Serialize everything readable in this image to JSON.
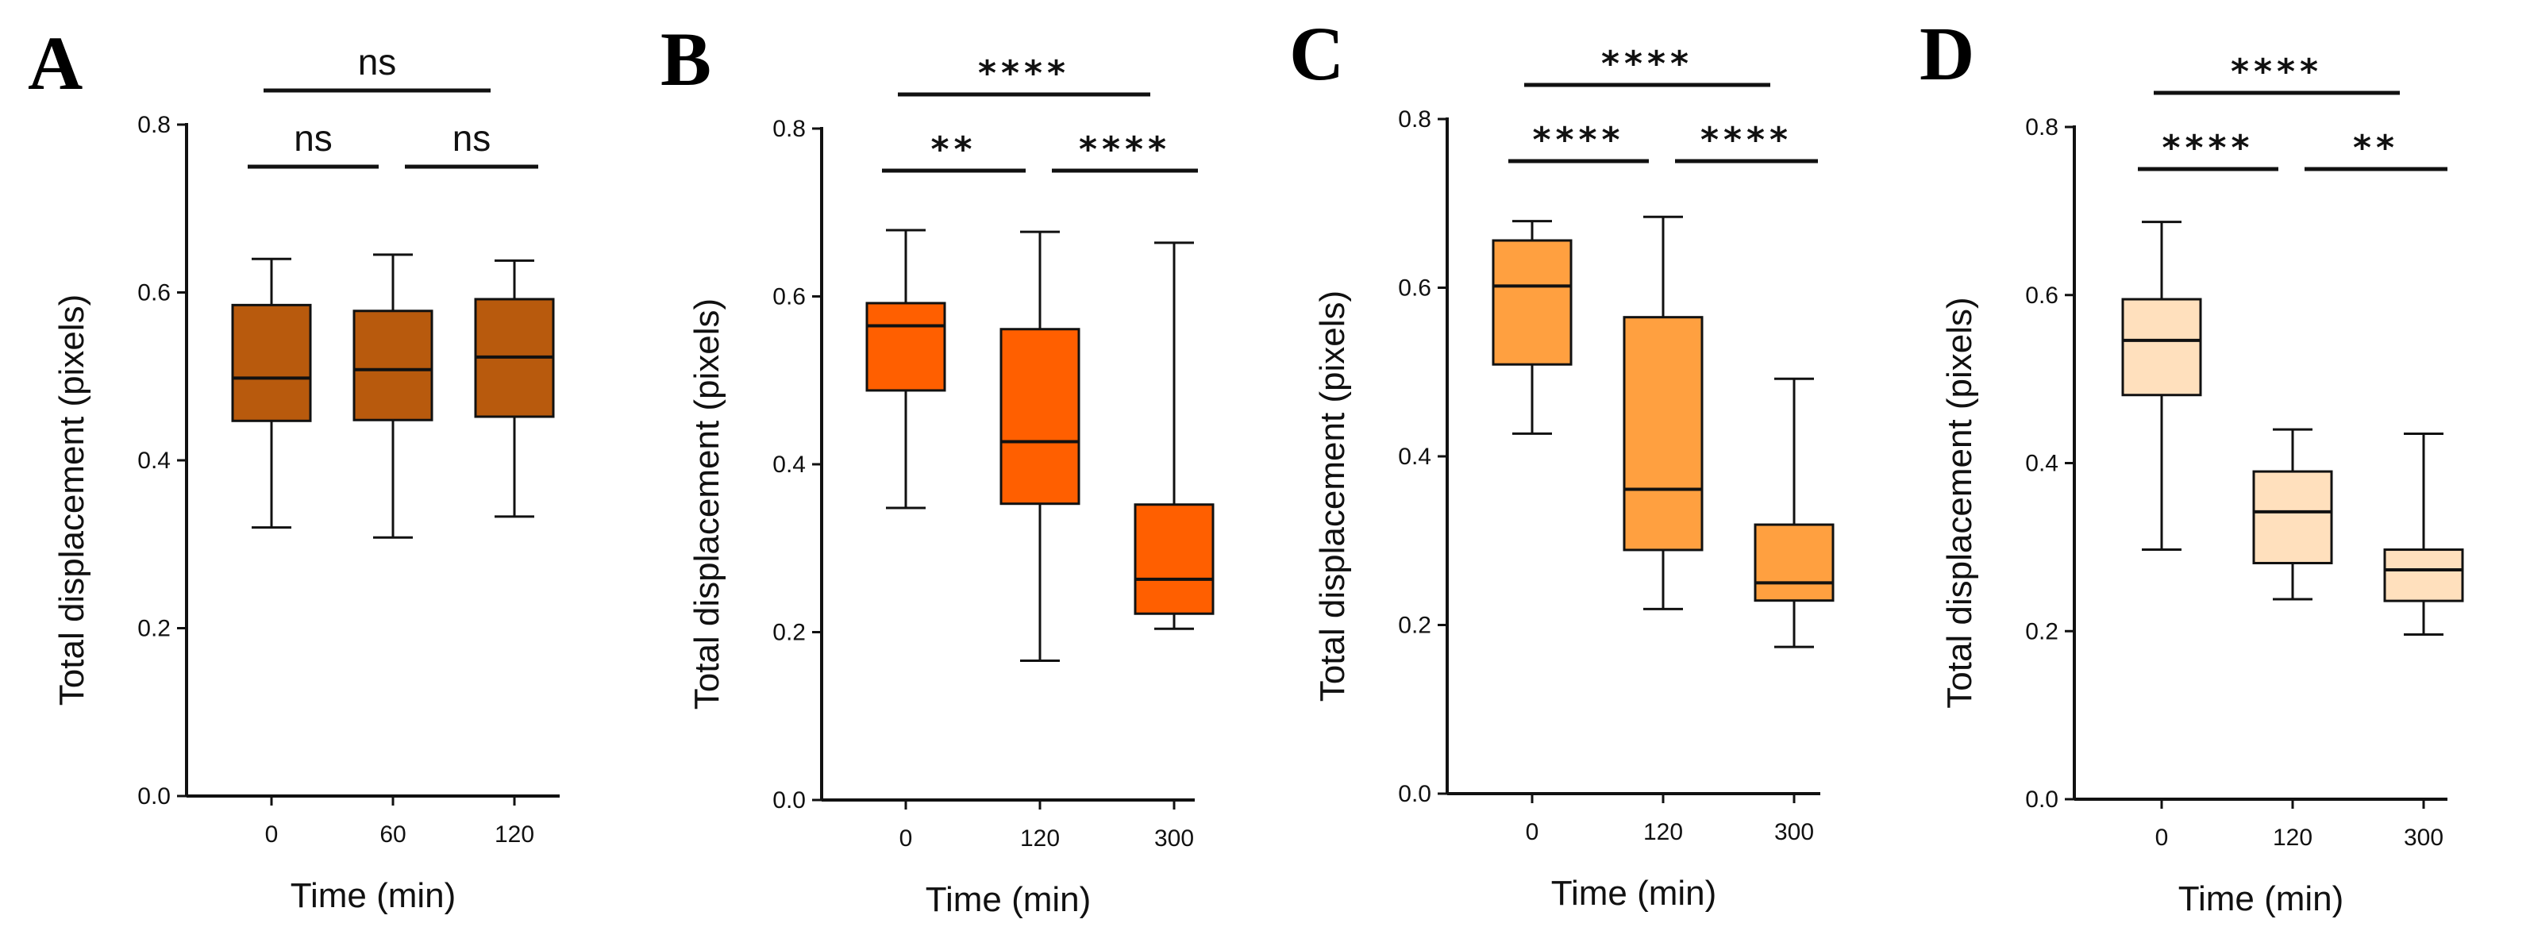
{
  "chart_data": [
    {
      "type": "box",
      "panel_label": "A",
      "xlabel": "Time  (min)",
      "ylabel": "Total displacement (pixels)",
      "ylim": [
        0.0,
        0.8
      ],
      "yticks": [
        "0.0",
        "0.2",
        "0.4",
        "0.6",
        "0.8"
      ],
      "fill_color": "#B85A0D",
      "categories": [
        "0",
        "60",
        "120"
      ],
      "boxes": [
        {
          "min": 0.32,
          "q1": 0.447,
          "median": 0.498,
          "q3": 0.585,
          "max": 0.64
        },
        {
          "min": 0.308,
          "q1": 0.448,
          "median": 0.508,
          "q3": 0.578,
          "max": 0.645
        },
        {
          "min": 0.333,
          "q1": 0.452,
          "median": 0.523,
          "q3": 0.592,
          "max": 0.638
        }
      ],
      "significance": [
        {
          "from": 0,
          "to": 2,
          "label": "ns",
          "tier": 2
        },
        {
          "from": 0,
          "to": 1,
          "label": "ns",
          "tier": 1
        },
        {
          "from": 1,
          "to": 2,
          "label": "ns",
          "tier": 1
        }
      ]
    },
    {
      "type": "box",
      "panel_label": "B",
      "xlabel": "Time  (min)",
      "ylabel": "Total displacement (pixels)",
      "ylim": [
        0.0,
        0.8
      ],
      "yticks": [
        "0.0",
        "0.2",
        "0.4",
        "0.6",
        "0.8"
      ],
      "fill_color": "#FF5F00",
      "categories": [
        "0",
        "120",
        "300"
      ],
      "boxes": [
        {
          "min": 0.348,
          "q1": 0.488,
          "median": 0.565,
          "q3": 0.592,
          "max": 0.679
        },
        {
          "min": 0.166,
          "q1": 0.353,
          "median": 0.427,
          "q3": 0.561,
          "max": 0.677
        },
        {
          "min": 0.204,
          "q1": 0.222,
          "median": 0.263,
          "q3": 0.352,
          "max": 0.664
        }
      ],
      "significance": [
        {
          "from": 0,
          "to": 2,
          "label": "****",
          "tier": 2
        },
        {
          "from": 0,
          "to": 1,
          "label": "**",
          "tier": 1
        },
        {
          "from": 1,
          "to": 2,
          "label": "****",
          "tier": 1
        }
      ]
    },
    {
      "type": "box",
      "panel_label": "C",
      "xlabel": "Time  (min)",
      "ylabel": "Total displacement (pixels)",
      "ylim": [
        0.0,
        0.8
      ],
      "yticks": [
        "0.0",
        "0.2",
        "0.4",
        "0.6",
        "0.8"
      ],
      "fill_color": "#FFA040",
      "categories": [
        "0",
        "120",
        "300"
      ],
      "boxes": [
        {
          "min": 0.427,
          "q1": 0.509,
          "median": 0.602,
          "q3": 0.656,
          "max": 0.679
        },
        {
          "min": 0.219,
          "q1": 0.289,
          "median": 0.361,
          "q3": 0.565,
          "max": 0.684
        },
        {
          "min": 0.174,
          "q1": 0.229,
          "median": 0.25,
          "q3": 0.319,
          "max": 0.492
        }
      ],
      "significance": [
        {
          "from": 0,
          "to": 2,
          "label": "****",
          "tier": 2
        },
        {
          "from": 0,
          "to": 1,
          "label": "****",
          "tier": 1
        },
        {
          "from": 1,
          "to": 2,
          "label": "****",
          "tier": 1
        }
      ]
    },
    {
      "type": "box",
      "panel_label": "D",
      "xlabel": "Time  (min)",
      "ylabel": "Total displacement (pixels)",
      "ylim": [
        0.0,
        0.8
      ],
      "yticks": [
        "0.0",
        "0.2",
        "0.4",
        "0.6",
        "0.8"
      ],
      "fill_color": "#FFE0BD",
      "categories": [
        "0",
        "120",
        "300"
      ],
      "boxes": [
        {
          "min": 0.297,
          "q1": 0.481,
          "median": 0.546,
          "q3": 0.595,
          "max": 0.687
        },
        {
          "min": 0.238,
          "q1": 0.281,
          "median": 0.342,
          "q3": 0.39,
          "max": 0.44
        },
        {
          "min": 0.196,
          "q1": 0.236,
          "median": 0.273,
          "q3": 0.297,
          "max": 0.435
        }
      ],
      "significance": [
        {
          "from": 0,
          "to": 2,
          "label": "****",
          "tier": 2
        },
        {
          "from": 0,
          "to": 1,
          "label": "****",
          "tier": 1
        },
        {
          "from": 1,
          "to": 2,
          "label": "**",
          "tier": 1
        }
      ]
    }
  ]
}
